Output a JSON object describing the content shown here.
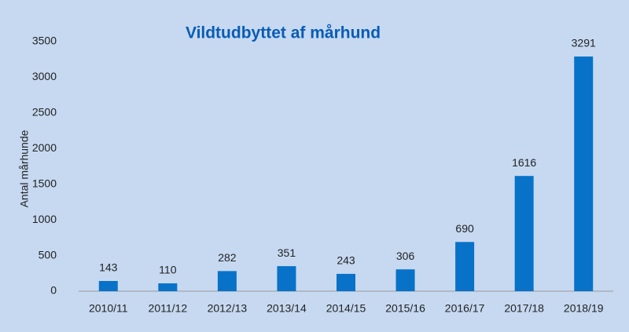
{
  "chart_data": {
    "type": "bar",
    "title": "Vildtudbyttet af mårhund",
    "y_label": "Antal mårhunde",
    "categories": [
      "2010/11",
      "2011/12",
      "2012/13",
      "2013/14",
      "2014/15",
      "2015/16",
      "2016/17",
      "2017/18",
      "2018/19"
    ],
    "values": [
      143,
      110,
      282,
      351,
      243,
      306,
      690,
      1616,
      3291
    ],
    "color": "#0872c8",
    "ylim": [
      0,
      3500
    ],
    "yticks": [
      0,
      500,
      1000,
      1500,
      2000,
      2500,
      3000,
      3500
    ],
    "grid": false
  }
}
